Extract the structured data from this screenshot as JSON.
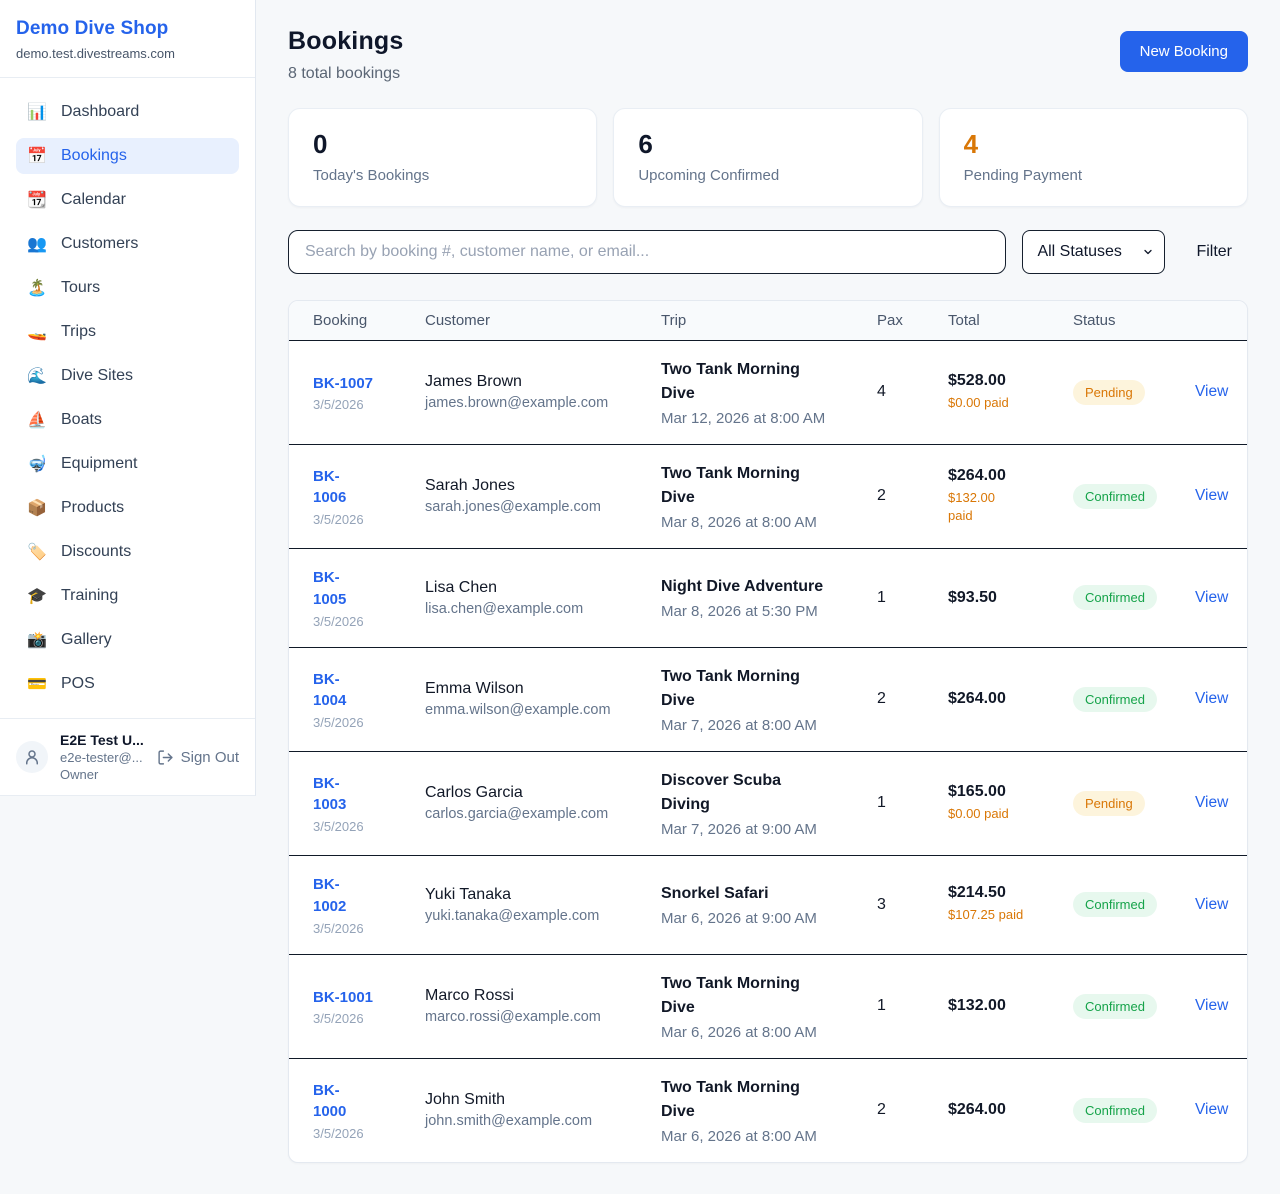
{
  "sidebar": {
    "shop_name": "Demo Dive Shop",
    "shop_domain": "demo.test.divestreams.com",
    "items": [
      {
        "icon": "📊",
        "label": "Dashboard",
        "active": false
      },
      {
        "icon": "📅",
        "label": "Bookings",
        "active": true
      },
      {
        "icon": "📆",
        "label": "Calendar",
        "active": false
      },
      {
        "icon": "👥",
        "label": "Customers",
        "active": false
      },
      {
        "icon": "🏝️",
        "label": "Tours",
        "active": false
      },
      {
        "icon": "🚤",
        "label": "Trips",
        "active": false
      },
      {
        "icon": "🌊",
        "label": "Dive Sites",
        "active": false
      },
      {
        "icon": "⛵",
        "label": "Boats",
        "active": false
      },
      {
        "icon": "🤿",
        "label": "Equipment",
        "active": false
      },
      {
        "icon": "📦",
        "label": "Products",
        "active": false
      },
      {
        "icon": "🏷️",
        "label": "Discounts",
        "active": false
      },
      {
        "icon": "🎓",
        "label": "Training",
        "active": false
      },
      {
        "icon": "📸",
        "label": "Gallery",
        "active": false
      },
      {
        "icon": "💳",
        "label": "POS",
        "active": false
      }
    ],
    "user": {
      "name": "E2E Test U...",
      "email": "e2e-tester@...",
      "role": "Owner",
      "sign_out_label": "Sign Out"
    }
  },
  "header": {
    "title": "Bookings",
    "subtitle": "8 total bookings",
    "new_booking_label": "New Booking"
  },
  "stats": [
    {
      "value": "0",
      "label": "Today's Bookings",
      "value_color": "#0f172a"
    },
    {
      "value": "6",
      "label": "Upcoming Confirmed",
      "value_color": "#0f172a"
    },
    {
      "value": "4",
      "label": "Pending Payment",
      "value_color": "#d97706"
    }
  ],
  "controls": {
    "search_placeholder": "Search by booking #, customer name, or email...",
    "status_filter_value": "All Statuses",
    "filter_label": "Filter"
  },
  "table": {
    "columns": [
      "Booking",
      "Customer",
      "Trip",
      "Pax",
      "Total",
      "Status"
    ],
    "view_label": "View",
    "rows": [
      {
        "id": "BK-1007",
        "id_wrapped": false,
        "date": "3/5/2026",
        "customer": "James Brown",
        "email": "james.brown@example.com",
        "trip": "Two Tank Morning Dive",
        "trip_wrapped": true,
        "trip_datetime": "Mar 12, 2026 at 8:00 AM",
        "pax": "4",
        "total": "$528.00",
        "paid": "$0.00 paid",
        "paid_wrapped": false,
        "status": "Pending"
      },
      {
        "id": "BK-1006",
        "id_wrapped": true,
        "date": "3/5/2026",
        "customer": "Sarah Jones",
        "email": "sarah.jones@example.com",
        "trip": "Two Tank Morning Dive",
        "trip_wrapped": true,
        "trip_datetime": "Mar 8, 2026 at 8:00 AM",
        "pax": "2",
        "total": "$264.00",
        "paid": "$132.00 paid",
        "paid_wrapped": true,
        "status": "Confirmed"
      },
      {
        "id": "BK-1005",
        "id_wrapped": true,
        "date": "3/5/2026",
        "customer": "Lisa Chen",
        "email": "lisa.chen@example.com",
        "trip": "Night Dive Adventure",
        "trip_wrapped": false,
        "trip_datetime": "Mar 8, 2026 at 5:30 PM",
        "pax": "1",
        "total": "$93.50",
        "paid": "",
        "paid_wrapped": false,
        "status": "Confirmed"
      },
      {
        "id": "BK-1004",
        "id_wrapped": true,
        "date": "3/5/2026",
        "customer": "Emma Wilson",
        "email": "emma.wilson@example.com",
        "trip": "Two Tank Morning Dive",
        "trip_wrapped": true,
        "trip_datetime": "Mar 7, 2026 at 8:00 AM",
        "pax": "2",
        "total": "$264.00",
        "paid": "",
        "paid_wrapped": false,
        "status": "Confirmed"
      },
      {
        "id": "BK-1003",
        "id_wrapped": true,
        "date": "3/5/2026",
        "customer": "Carlos Garcia",
        "email": "carlos.garcia@example.com",
        "trip": "Discover Scuba Diving",
        "trip_wrapped": true,
        "trip_datetime": "Mar 7, 2026 at 9:00 AM",
        "pax": "1",
        "total": "$165.00",
        "paid": "$0.00 paid",
        "paid_wrapped": false,
        "status": "Pending"
      },
      {
        "id": "BK-1002",
        "id_wrapped": true,
        "date": "3/5/2026",
        "customer": "Yuki Tanaka",
        "email": "yuki.tanaka@example.com",
        "trip": "Snorkel Safari",
        "trip_wrapped": false,
        "trip_datetime": "Mar 6, 2026 at 9:00 AM",
        "pax": "3",
        "total": "$214.50",
        "paid": "$107.25 paid",
        "paid_wrapped": false,
        "status": "Confirmed"
      },
      {
        "id": "BK-1001",
        "id_wrapped": false,
        "date": "3/5/2026",
        "customer": "Marco Rossi",
        "email": "marco.rossi@example.com",
        "trip": "Two Tank Morning Dive",
        "trip_wrapped": true,
        "trip_datetime": "Mar 6, 2026 at 8:00 AM",
        "pax": "1",
        "total": "$132.00",
        "paid": "",
        "paid_wrapped": false,
        "status": "Confirmed"
      },
      {
        "id": "BK-1000",
        "id_wrapped": true,
        "date": "3/5/2026",
        "customer": "John Smith",
        "email": "john.smith@example.com",
        "trip": "Two Tank Morning Dive",
        "trip_wrapped": true,
        "trip_datetime": "Mar 6, 2026 at 8:00 AM",
        "pax": "2",
        "total": "$264.00",
        "paid": "",
        "paid_wrapped": false,
        "status": "Confirmed"
      }
    ]
  },
  "colors": {
    "accent": "#2563eb",
    "pending": {
      "text": "#d97706",
      "bg": "#fdf4dc"
    },
    "confirmed": {
      "text": "#16a34a",
      "bg": "#e7f8ee"
    }
  }
}
